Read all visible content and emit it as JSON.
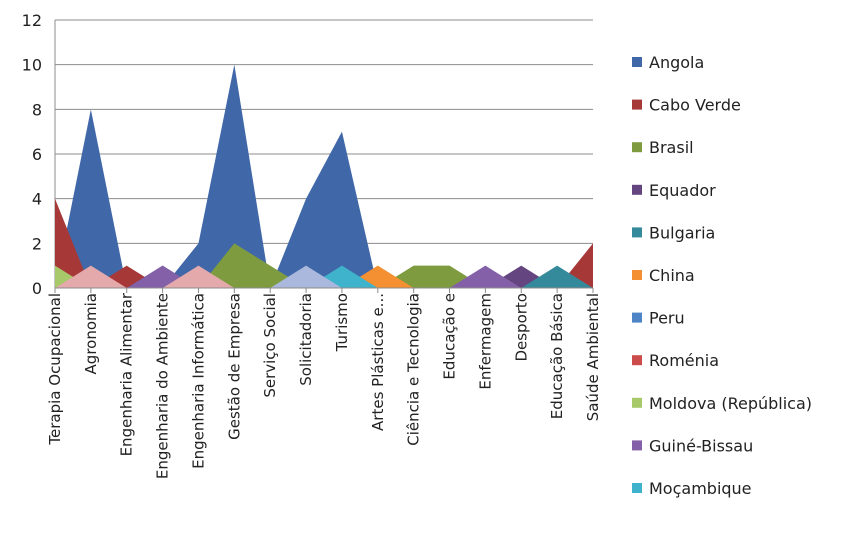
{
  "chart_data": {
    "type": "area",
    "title": "",
    "xlabel": "",
    "ylabel": "",
    "ylim": [
      0,
      12
    ],
    "yticks": [
      0,
      2,
      4,
      6,
      8,
      10,
      12
    ],
    "grid": true,
    "legend_position": "right",
    "categories": [
      "Terapia Ocupacional",
      "Agronomia",
      "Engenharia Alimentar",
      "Engenharia do Ambiente",
      "Engenharia Informática",
      "Gestão de Empresa",
      "Serviço Social",
      "Solicitadoria",
      "Turismo",
      "Artes Plásticas e...",
      "Ciência e Tecnologia",
      "Educação e",
      "Enfermagem",
      "Desporto",
      "Educação Básica",
      "Saúde Ambiental"
    ],
    "series": [
      {
        "name": "Angola",
        "color": "#4068a8",
        "values": [
          0,
          8,
          0,
          0,
          2,
          10,
          0,
          4,
          7,
          0,
          0,
          0,
          0,
          0,
          0,
          0
        ]
      },
      {
        "name": "Cabo Verde",
        "color": "#a73838",
        "values": [
          4,
          0,
          1,
          0,
          0,
          0,
          0,
          0,
          0,
          0,
          0,
          0,
          0,
          0,
          0,
          2
        ]
      },
      {
        "name": "Brasil",
        "color": "#7e9b3f",
        "values": [
          0,
          0,
          0,
          0,
          0,
          2,
          1,
          0,
          0,
          0,
          1,
          1,
          0,
          0,
          0,
          0
        ]
      },
      {
        "name": "Equador",
        "color": "#64457f",
        "values": [
          0,
          0,
          0,
          1,
          0,
          0,
          0,
          0,
          0,
          0,
          0,
          0,
          0,
          1,
          0,
          0
        ]
      },
      {
        "name": "Bulgaria",
        "color": "#348a9b",
        "values": [
          0,
          0,
          0,
          0,
          0,
          0,
          0,
          0,
          0,
          0,
          0,
          0,
          0,
          0,
          1,
          0
        ]
      },
      {
        "name": "China",
        "color": "#f48f32",
        "values": [
          0,
          0,
          0,
          0,
          0,
          0,
          0,
          0,
          0,
          1,
          0,
          0,
          0,
          0,
          0,
          0
        ]
      },
      {
        "name": "Peru",
        "color": "#4d84c6",
        "values": [
          0,
          0,
          0,
          0,
          0,
          0,
          0,
          0,
          0,
          0,
          0,
          0,
          0,
          0,
          0,
          0
        ]
      },
      {
        "name": "Roménia",
        "color": "#cc4b4b",
        "values": [
          0,
          0,
          0,
          0,
          0,
          0,
          0,
          0,
          0,
          0,
          0,
          0,
          0,
          0,
          0,
          0
        ]
      },
      {
        "name": "Moldova (República)",
        "color": "#a7c96a",
        "values": [
          1,
          0,
          0,
          0,
          0,
          0,
          0,
          0,
          0,
          0,
          0,
          0,
          0,
          0,
          0,
          0
        ]
      },
      {
        "name": "Guiné-Bissau",
        "color": "#8360a8",
        "values": [
          0,
          0,
          0,
          1,
          0,
          0,
          0,
          0,
          0,
          0,
          0,
          0,
          1,
          0,
          0,
          0
        ]
      },
      {
        "name": "Moçambique",
        "color": "#3fb2cc",
        "values": [
          0,
          0,
          0,
          0,
          0,
          0,
          0,
          0,
          1,
          0,
          0,
          0,
          0,
          0,
          0,
          0
        ]
      },
      {
        "name": "",
        "color": "#e3a9ab",
        "values": [
          0,
          1,
          0,
          0,
          1,
          0,
          0,
          0,
          0,
          0,
          0,
          0,
          0,
          0,
          0,
          0
        ]
      },
      {
        "name": "",
        "color": "#a9b8dc",
        "values": [
          0,
          0,
          0,
          0,
          0,
          0,
          0,
          1,
          0,
          0,
          0,
          0,
          0,
          0,
          0,
          0
        ]
      }
    ]
  }
}
